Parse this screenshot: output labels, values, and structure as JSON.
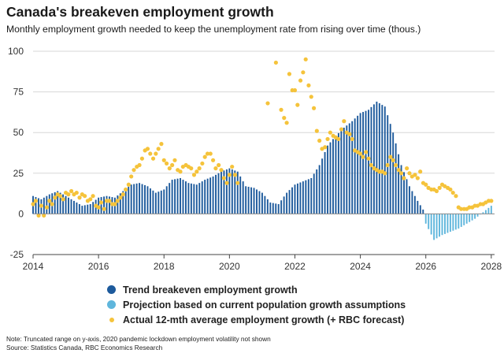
{
  "title": "Canada's breakeven employment growth",
  "subtitle": "Monthly employment growth needed to keep the unemployment rate from rising over time (thous.)",
  "legend": {
    "trend": "Trend breakeven employment growth",
    "projection": "Projection based on current population growth assumptions",
    "actual": "Actual 12-mth average employment growth (+ RBC forecast)"
  },
  "note": "Note: Truncated range on y-axis, 2020 pandemic lockdown employment volatility not shown",
  "source": "Source: Statistics Canada, RBC Economics Research",
  "colors": {
    "trend": "#1d5a9c",
    "projection": "#5fb6dc",
    "actual": "#f5c33b"
  },
  "chart_data": {
    "type": "bar",
    "title": "Canada's breakeven employment growth",
    "ylabel": "thous.",
    "xlim": [
      2014,
      2028.1
    ],
    "ylim": [
      -25,
      100
    ],
    "x_ticks": [
      2014,
      2016,
      2018,
      2020,
      2022,
      2024,
      2026,
      2028
    ],
    "y_ticks": [
      -25,
      0,
      25,
      50,
      75,
      100
    ],
    "series": [
      {
        "name": "Trend breakeven employment growth",
        "type": "bar",
        "points": [
          [
            2014.0,
            11
          ],
          [
            2014.25,
            9
          ],
          [
            2014.5,
            12
          ],
          [
            2014.75,
            14
          ],
          [
            2015.0,
            11
          ],
          [
            2015.25,
            8
          ],
          [
            2015.5,
            5
          ],
          [
            2015.75,
            6
          ],
          [
            2016.0,
            10
          ],
          [
            2016.25,
            11
          ],
          [
            2016.5,
            10
          ],
          [
            2016.75,
            14
          ],
          [
            2017.0,
            18
          ],
          [
            2017.25,
            19
          ],
          [
            2017.5,
            17
          ],
          [
            2017.75,
            13
          ],
          [
            2018.0,
            15
          ],
          [
            2018.25,
            21
          ],
          [
            2018.5,
            22
          ],
          [
            2018.75,
            19
          ],
          [
            2019.0,
            18
          ],
          [
            2019.25,
            21
          ],
          [
            2019.5,
            23
          ],
          [
            2019.75,
            26
          ],
          [
            2020.0,
            28
          ],
          [
            2020.25,
            26
          ],
          [
            2020.5,
            17
          ],
          [
            2020.75,
            16
          ],
          [
            2021.0,
            13
          ],
          [
            2021.25,
            7
          ],
          [
            2021.5,
            6
          ],
          [
            2021.75,
            13
          ],
          [
            2022.0,
            18
          ],
          [
            2022.25,
            20
          ],
          [
            2022.5,
            22
          ],
          [
            2022.75,
            30
          ],
          [
            2023.0,
            42
          ],
          [
            2023.25,
            48
          ],
          [
            2023.5,
            53
          ],
          [
            2023.75,
            57
          ],
          [
            2024.0,
            62
          ],
          [
            2024.25,
            64
          ],
          [
            2024.5,
            69
          ],
          [
            2024.75,
            66
          ],
          [
            2025.0,
            50
          ],
          [
            2025.25,
            30
          ],
          [
            2025.5,
            17
          ],
          [
            2025.75,
            8
          ],
          [
            2026.0,
            0
          ]
        ]
      },
      {
        "name": "Projection based on current population growth assumptions",
        "type": "bar",
        "points": [
          [
            2026.0,
            -6
          ],
          [
            2026.25,
            -16
          ],
          [
            2026.5,
            -13
          ],
          [
            2026.75,
            -11
          ],
          [
            2027.0,
            -9
          ],
          [
            2027.25,
            -6
          ],
          [
            2027.5,
            -3
          ],
          [
            2027.75,
            1
          ],
          [
            2028.0,
            5
          ]
        ]
      },
      {
        "name": "Actual 12-mth average employment growth (+ RBC forecast)",
        "type": "scatter",
        "points": [
          [
            2014.0,
            6
          ],
          [
            2014.08,
            8
          ],
          [
            2014.17,
            -1
          ],
          [
            2014.25,
            5
          ],
          [
            2014.33,
            -1
          ],
          [
            2014.42,
            4
          ],
          [
            2014.5,
            8
          ],
          [
            2014.58,
            6
          ],
          [
            2014.67,
            10
          ],
          [
            2014.75,
            12
          ],
          [
            2014.83,
            11
          ],
          [
            2014.92,
            9
          ],
          [
            2015.0,
            13
          ],
          [
            2015.08,
            12
          ],
          [
            2015.17,
            14
          ],
          [
            2015.25,
            12
          ],
          [
            2015.33,
            13
          ],
          [
            2015.42,
            10
          ],
          [
            2015.5,
            12
          ],
          [
            2015.58,
            11
          ],
          [
            2015.67,
            8
          ],
          [
            2015.75,
            9
          ],
          [
            2015.83,
            11
          ],
          [
            2015.92,
            5
          ],
          [
            2016.0,
            4
          ],
          [
            2016.08,
            7
          ],
          [
            2016.17,
            3
          ],
          [
            2016.25,
            8
          ],
          [
            2016.33,
            8
          ],
          [
            2016.42,
            6
          ],
          [
            2016.5,
            6
          ],
          [
            2016.58,
            8
          ],
          [
            2016.67,
            10
          ],
          [
            2016.75,
            12
          ],
          [
            2016.83,
            15
          ],
          [
            2016.92,
            18
          ],
          [
            2017.0,
            23
          ],
          [
            2017.08,
            27
          ],
          [
            2017.17,
            29
          ],
          [
            2017.25,
            30
          ],
          [
            2017.33,
            34
          ],
          [
            2017.42,
            39
          ],
          [
            2017.5,
            40
          ],
          [
            2017.58,
            37
          ],
          [
            2017.67,
            34
          ],
          [
            2017.75,
            37
          ],
          [
            2017.83,
            40
          ],
          [
            2017.92,
            43
          ],
          [
            2018.0,
            33
          ],
          [
            2018.08,
            31
          ],
          [
            2018.17,
            28
          ],
          [
            2018.25,
            30
          ],
          [
            2018.33,
            33
          ],
          [
            2018.42,
            27
          ],
          [
            2018.5,
            26
          ],
          [
            2018.58,
            29
          ],
          [
            2018.67,
            30
          ],
          [
            2018.75,
            29
          ],
          [
            2018.83,
            28
          ],
          [
            2018.92,
            24
          ],
          [
            2019.0,
            26
          ],
          [
            2019.08,
            28
          ],
          [
            2019.17,
            31
          ],
          [
            2019.25,
            35
          ],
          [
            2019.33,
            37
          ],
          [
            2019.42,
            37
          ],
          [
            2019.5,
            33
          ],
          [
            2019.58,
            28
          ],
          [
            2019.67,
            30
          ],
          [
            2019.75,
            27
          ],
          [
            2019.83,
            22
          ],
          [
            2019.92,
            19
          ],
          [
            2020.0,
            24
          ],
          [
            2020.08,
            29
          ],
          [
            2020.17,
            24
          ],
          [
            2020.25,
            19
          ],
          [
            2021.17,
            68
          ],
          [
            2021.42,
            93
          ],
          [
            2021.58,
            64
          ],
          [
            2021.67,
            59
          ],
          [
            2021.75,
            56
          ],
          [
            2021.83,
            86
          ],
          [
            2021.92,
            76
          ],
          [
            2022.0,
            76
          ],
          [
            2022.08,
            67
          ],
          [
            2022.17,
            82
          ],
          [
            2022.25,
            87
          ],
          [
            2022.33,
            95
          ],
          [
            2022.42,
            79
          ],
          [
            2022.5,
            72
          ],
          [
            2022.58,
            65
          ],
          [
            2022.67,
            51
          ],
          [
            2022.75,
            45
          ],
          [
            2022.83,
            40
          ],
          [
            2022.92,
            41
          ],
          [
            2023.0,
            46
          ],
          [
            2023.08,
            50
          ],
          [
            2023.17,
            48
          ],
          [
            2023.25,
            47
          ],
          [
            2023.33,
            46
          ],
          [
            2023.42,
            52
          ],
          [
            2023.5,
            57
          ],
          [
            2023.58,
            50
          ],
          [
            2023.67,
            49
          ],
          [
            2023.75,
            46
          ],
          [
            2023.83,
            39
          ],
          [
            2023.92,
            38
          ],
          [
            2024.0,
            37
          ],
          [
            2024.08,
            35
          ],
          [
            2024.17,
            38
          ],
          [
            2024.25,
            34
          ],
          [
            2024.33,
            30
          ],
          [
            2024.42,
            28
          ],
          [
            2024.5,
            27
          ],
          [
            2024.58,
            26
          ],
          [
            2024.67,
            26
          ],
          [
            2024.75,
            25
          ],
          [
            2024.83,
            30
          ],
          [
            2024.92,
            35
          ],
          [
            2025.0,
            33
          ],
          [
            2025.08,
            30
          ],
          [
            2025.17,
            27
          ],
          [
            2025.25,
            25
          ],
          [
            2025.33,
            22
          ],
          [
            2025.42,
            28
          ],
          [
            2025.5,
            25
          ],
          [
            2025.58,
            23
          ],
          [
            2025.67,
            24
          ],
          [
            2025.75,
            22
          ],
          [
            2025.83,
            26
          ],
          [
            2025.92,
            19
          ],
          [
            2026.0,
            18
          ],
          [
            2026.08,
            16
          ],
          [
            2026.17,
            15
          ],
          [
            2026.25,
            15
          ],
          [
            2026.33,
            14
          ],
          [
            2026.42,
            16
          ],
          [
            2026.5,
            18
          ],
          [
            2026.58,
            17
          ],
          [
            2026.67,
            16
          ],
          [
            2026.75,
            15
          ],
          [
            2026.83,
            13
          ],
          [
            2026.92,
            11
          ],
          [
            2027.0,
            4
          ],
          [
            2027.08,
            3
          ],
          [
            2027.17,
            3
          ],
          [
            2027.25,
            3
          ],
          [
            2027.33,
            4
          ],
          [
            2027.42,
            4
          ],
          [
            2027.5,
            5
          ],
          [
            2027.58,
            5
          ],
          [
            2027.67,
            6
          ],
          [
            2027.75,
            6
          ],
          [
            2027.83,
            7
          ],
          [
            2027.92,
            8
          ],
          [
            2028.0,
            8
          ]
        ]
      }
    ]
  }
}
